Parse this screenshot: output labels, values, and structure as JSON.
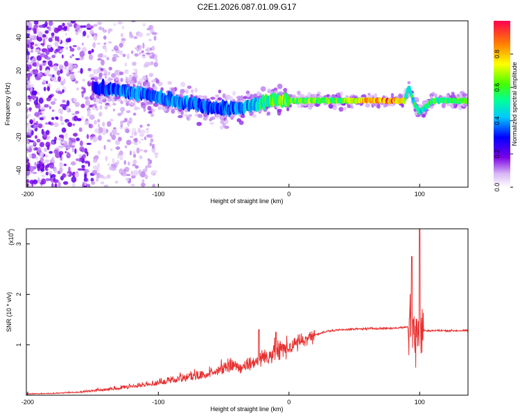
{
  "title": "C2E1.2026.087.01.09.G17",
  "chart_data": [
    {
      "type": "heatmap",
      "name": "spectrogram",
      "xlabel": "Height of straight line (km)",
      "ylabel": "Frequency (Hz)",
      "xlim": [
        -201,
        137
      ],
      "ylim": [
        -50,
        50
      ],
      "xticks": [
        -200,
        -100,
        0,
        100
      ],
      "xtick_labels": [
        "-200",
        "-100",
        "0",
        "100"
      ],
      "yticks": [
        -40,
        -20,
        0,
        20,
        40
      ],
      "ytick_labels": [
        "-40",
        "-20",
        "0",
        "20",
        "40"
      ],
      "ridge": {
        "x": [
          -150,
          -140,
          -120,
          -100,
          -80,
          -60,
          -40,
          -30,
          -20,
          -10,
          0,
          20,
          40,
          60,
          80,
          88,
          92,
          96,
          100,
          110,
          137
        ],
        "frequency": [
          10,
          9,
          7,
          4,
          1,
          -2,
          -3,
          -1,
          1,
          2,
          2,
          2,
          2,
          2,
          2,
          2,
          10,
          0,
          -5,
          2,
          2
        ],
        "amplitude": [
          0.25,
          0.35,
          0.4,
          0.4,
          0.4,
          0.35,
          0.4,
          0.45,
          0.55,
          0.65,
          0.7,
          0.65,
          0.65,
          0.9,
          0.95,
          0.7,
          0.5,
          0.55,
          0.5,
          0.6,
          0.6
        ]
      },
      "colorbar": {
        "label": "Normalized spectral amplitude",
        "range": [
          0,
          1
        ],
        "ticks": [
          0.0,
          0.2,
          0.4,
          0.6,
          0.8
        ],
        "tick_labels": [
          "0.0",
          "0.2",
          "0.4",
          "0.6",
          "0.8"
        ]
      }
    },
    {
      "type": "line",
      "name": "snr",
      "xlabel": "Height of straight line (km)",
      "ylabel": "SNR (10 * v/v)",
      "scale_label": "(x10",
      "scale_exponent": "4",
      "xlim": [
        -201,
        137
      ],
      "ylim": [
        0,
        3.3
      ],
      "xticks": [
        -200,
        -100,
        0,
        100
      ],
      "xtick_labels": [
        "-200",
        "-100",
        "0",
        "100"
      ],
      "yticks": [
        1,
        2,
        3
      ],
      "ytick_labels": [
        "1",
        "2",
        "3"
      ],
      "series": [
        {
          "name": "SNR",
          "color": "#e83030",
          "x": [
            -201,
            -180,
            -160,
            -140,
            -120,
            -100,
            -80,
            -60,
            -40,
            -30,
            -20,
            -10,
            0,
            10,
            20,
            30,
            40,
            60,
            80,
            90,
            95,
            100,
            105,
            120,
            137
          ],
          "y": [
            0.02,
            0.03,
            0.05,
            0.09,
            0.14,
            0.2,
            0.27,
            0.35,
            0.5,
            0.62,
            0.75,
            0.85,
            0.95,
            1.08,
            1.2,
            1.27,
            1.3,
            1.32,
            1.33,
            1.35,
            1.35,
            1.3,
            1.28,
            1.28,
            1.28
          ],
          "peaks": [
            {
              "x": 94,
              "y": 2.75
            },
            {
              "x": 100,
              "y": 3.3
            },
            {
              "x": -23,
              "y": 1.3
            },
            {
              "x": -10,
              "y": 1.25
            }
          ]
        }
      ]
    }
  ]
}
